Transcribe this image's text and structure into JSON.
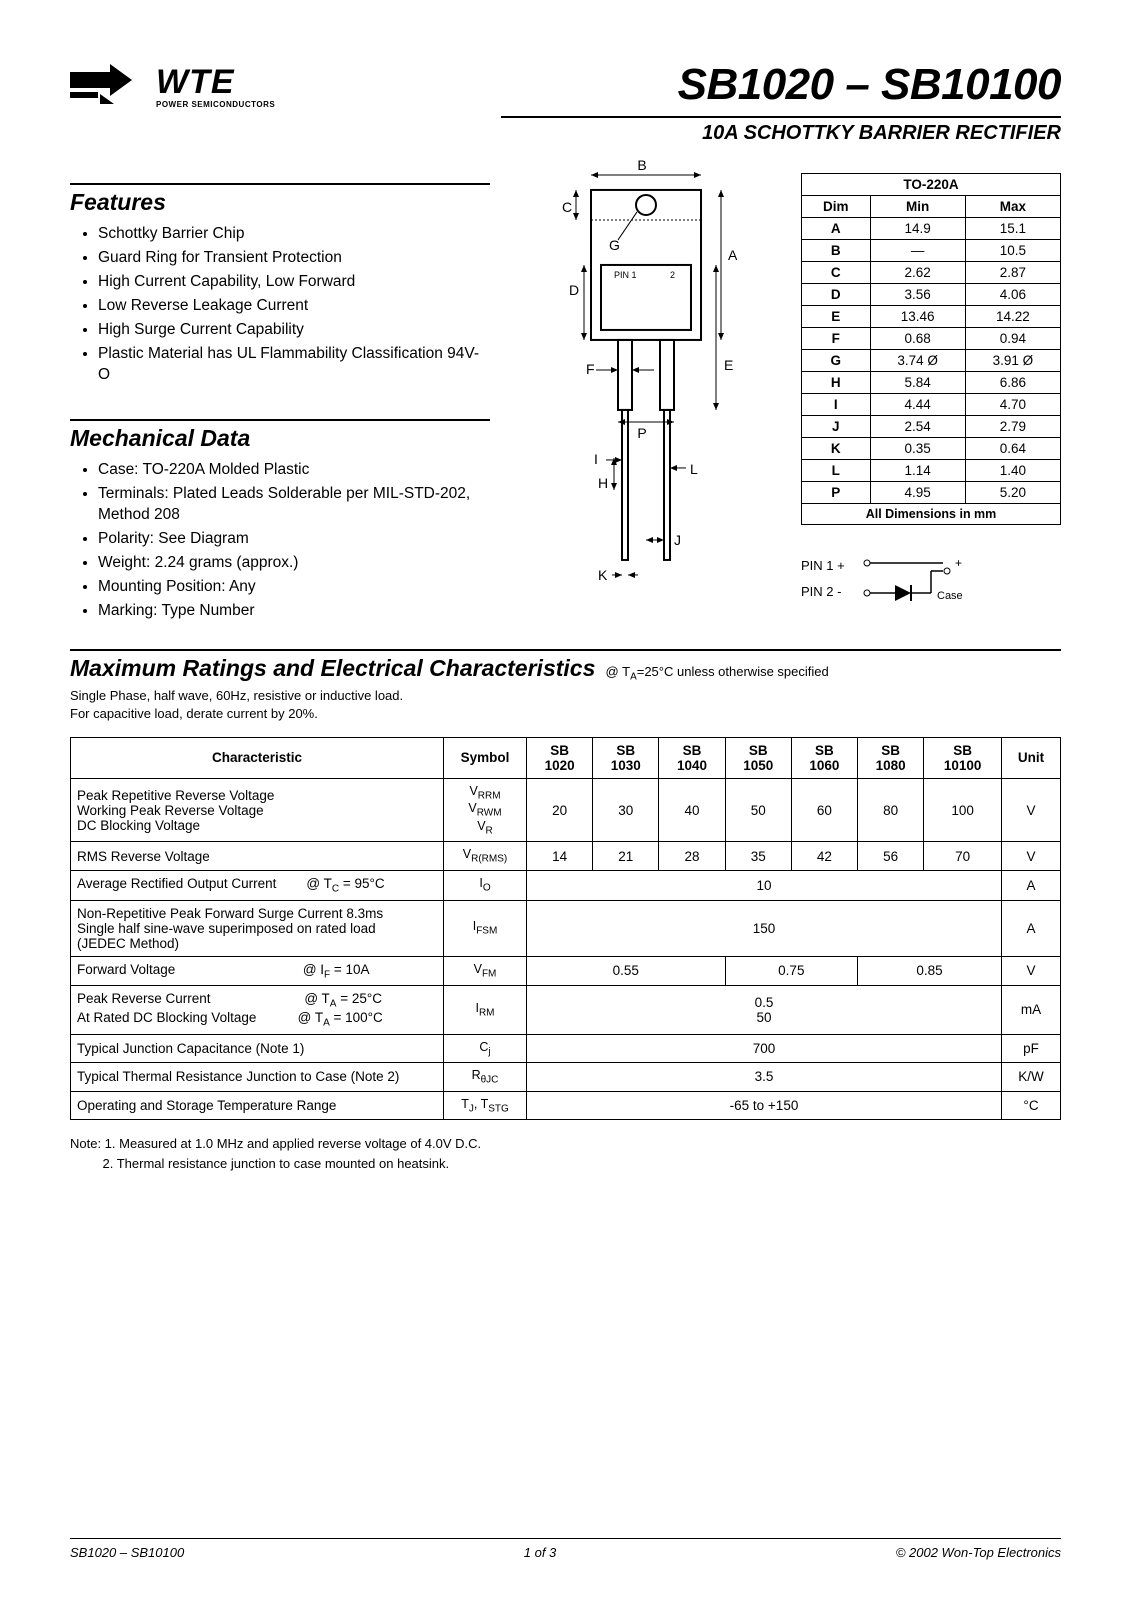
{
  "header": {
    "logo_text": "WTE",
    "logo_sub": "POWER SEMICONDUCTORS",
    "part_title": "SB1020 – SB10100",
    "part_subtitle": "10A SCHOTTKY BARRIER RECTIFIER"
  },
  "features": {
    "heading": "Features",
    "items": [
      "Schottky Barrier Chip",
      "Guard Ring for Transient Protection",
      "High Current Capability, Low Forward",
      "Low Reverse Leakage Current",
      "High Surge Current Capability",
      "Plastic Material has UL Flammability Classification 94V-O"
    ]
  },
  "mechanical": {
    "heading": "Mechanical Data",
    "items": [
      "Case: TO-220A Molded Plastic",
      "Terminals: Plated Leads Solderable per MIL-STD-202, Method 208",
      "Polarity: See Diagram",
      "Weight: 2.24 grams (approx.)",
      "Mounting Position: Any",
      "Marking: Type Number"
    ]
  },
  "package_diagram": {
    "labels": [
      "A",
      "B",
      "C",
      "D",
      "E",
      "F",
      "G",
      "H",
      "I",
      "J",
      "K",
      "L",
      "P"
    ],
    "pin1": "PIN 1",
    "pin2": "2"
  },
  "dimensions_table": {
    "title": "TO-220A",
    "columns": [
      "Dim",
      "Min",
      "Max"
    ],
    "rows": [
      [
        "A",
        "14.9",
        "15.1"
      ],
      [
        "B",
        "—",
        "10.5"
      ],
      [
        "C",
        "2.62",
        "2.87"
      ],
      [
        "D",
        "3.56",
        "4.06"
      ],
      [
        "E",
        "13.46",
        "14.22"
      ],
      [
        "F",
        "0.68",
        "0.94"
      ],
      [
        "G",
        "3.74 Ø",
        "3.91 Ø"
      ],
      [
        "H",
        "5.84",
        "6.86"
      ],
      [
        "I",
        "4.44",
        "4.70"
      ],
      [
        "J",
        "2.54",
        "2.79"
      ],
      [
        "K",
        "0.35",
        "0.64"
      ],
      [
        "L",
        "1.14",
        "1.40"
      ],
      [
        "P",
        "4.95",
        "5.20"
      ]
    ],
    "footer": "All Dimensions in mm"
  },
  "pin_diagram": {
    "pin1_label": "PIN 1 +",
    "pin2_label": "PIN 2 -",
    "plus": "+",
    "case": "Case"
  },
  "ratings": {
    "heading": "Maximum Ratings and Electrical Characteristics",
    "cond": "@ T",
    "cond_sub": "A",
    "cond_rest": "=25°C unless otherwise specified",
    "note_line1": "Single Phase, half wave, 60Hz, resistive or inductive load.",
    "note_line2": "For capacitive load, derate current by 20%.",
    "columns": [
      "Characteristic",
      "Symbol",
      "SB 1020",
      "SB 1030",
      "SB 1040",
      "SB 1050",
      "SB 1060",
      "SB 1080",
      "SB 10100",
      "Unit"
    ],
    "col_split_top": [
      "SB",
      "SB",
      "SB",
      "SB",
      "SB",
      "SB",
      "SB"
    ],
    "col_split_bot": [
      "1020",
      "1030",
      "1040",
      "1050",
      "1060",
      "1080",
      "10100"
    ],
    "rows": [
      {
        "char_html": "Peak Repetitive Reverse Voltage<br>Working Peak Reverse Voltage<br>DC Blocking Voltage",
        "sym_html": "V<span class='sub'>RRM</span><br>V<span class='sub'>RWM</span><br>V<span class='sub'>R</span>",
        "vals": [
          "20",
          "30",
          "40",
          "50",
          "60",
          "80",
          "100"
        ],
        "unit": "V"
      },
      {
        "char_html": "RMS Reverse Voltage",
        "sym_html": "V<span class='sub'>R(RMS)</span>",
        "vals": [
          "14",
          "21",
          "28",
          "35",
          "42",
          "56",
          "70"
        ],
        "unit": "V"
      },
      {
        "char_html": "Average Rectified Output Current&nbsp;&nbsp;&nbsp;&nbsp;&nbsp;&nbsp;&nbsp;&nbsp;@ T<span class='sub'>C</span> = 95°C",
        "sym_html": "I<span class='sub'>O</span>",
        "span": "10",
        "unit": "A"
      },
      {
        "char_html": "Non-Repetitive Peak Forward Surge Current 8.3ms<br>Single half sine-wave superimposed on rated load<br>(JEDEC Method)",
        "sym_html": "I<span class='sub'>FSM</span>",
        "span": "150",
        "unit": "A"
      },
      {
        "char_html": "Forward Voltage&nbsp;&nbsp;&nbsp;&nbsp;&nbsp;&nbsp;&nbsp;&nbsp;&nbsp;&nbsp;&nbsp;&nbsp;&nbsp;&nbsp;&nbsp;&nbsp;&nbsp;&nbsp;&nbsp;&nbsp;&nbsp;&nbsp;&nbsp;&nbsp;&nbsp;&nbsp;&nbsp;&nbsp;&nbsp;&nbsp;&nbsp;&nbsp;&nbsp;&nbsp;@ I<span class='sub'>F</span> = 10A",
        "sym_html": "V<span class='sub'>FM</span>",
        "groups": [
          [
            "0.55",
            3
          ],
          [
            "0.75",
            2
          ],
          [
            "0.85",
            2
          ]
        ],
        "unit": "V"
      },
      {
        "char_html": "Peak Reverse Current&nbsp;&nbsp;&nbsp;&nbsp;&nbsp;&nbsp;&nbsp;&nbsp;&nbsp;&nbsp;&nbsp;&nbsp;&nbsp;&nbsp;&nbsp;&nbsp;&nbsp;&nbsp;&nbsp;&nbsp;&nbsp;&nbsp;&nbsp;&nbsp;&nbsp;@ T<span class='sub'>A</span> = 25°C<br>At Rated DC Blocking Voltage&nbsp;&nbsp;&nbsp;&nbsp;&nbsp;&nbsp;&nbsp;&nbsp;&nbsp;&nbsp;&nbsp;@ T<span class='sub'>A</span> = 100°C",
        "sym_html": "I<span class='sub'>RM</span>",
        "span": "0.5<br>50",
        "unit": "mA"
      },
      {
        "char_html": "Typical Junction Capacitance (Note 1)",
        "sym_html": "C<span class='sub'>j</span>",
        "span": "700",
        "unit": "pF"
      },
      {
        "char_html": "Typical Thermal Resistance Junction to Case (Note 2)",
        "sym_html": "R<span class='sub'>θJC</span>",
        "span": "3.5",
        "unit": "K/W"
      },
      {
        "char_html": "Operating and Storage Temperature Range",
        "sym_html": "T<span class='sub'>J</span>, T<span class='sub'>STG</span>",
        "span": "-65 to +150",
        "unit": "°C"
      }
    ]
  },
  "notes": {
    "line1": "Note: 1. Measured at 1.0 MHz and applied reverse voltage of 4.0V D.C.",
    "line2": "         2. Thermal resistance junction to case mounted on heatsink."
  },
  "footer": {
    "left": "SB1020 – SB10100",
    "center": "1 of 3",
    "right": "© 2002 Won-Top Electronics"
  },
  "colors": {
    "black": "#000000",
    "white": "#ffffff"
  }
}
